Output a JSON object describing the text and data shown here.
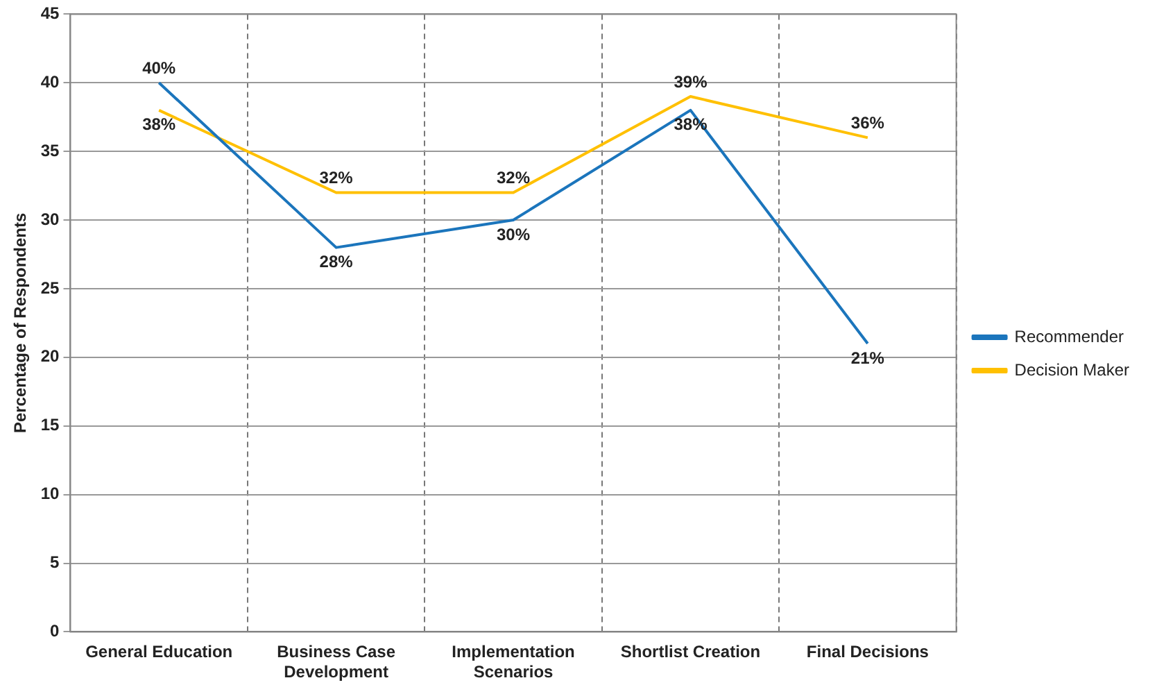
{
  "chart_data": {
    "type": "line",
    "ylabel": "Percentage of Respondents",
    "categories": [
      "General Education",
      "Business Case Development",
      "Implementation Scenarios",
      "Shortlist Creation",
      "Final Decisions"
    ],
    "series": [
      {
        "name": "Recommender",
        "color": "#1b75bc",
        "values": [
          40,
          28,
          30,
          38,
          21
        ],
        "value_labels": [
          "40%",
          "28%",
          "30%",
          "38%",
          "21%"
        ]
      },
      {
        "name": "Decision Maker",
        "color": "#ffc000",
        "values": [
          38,
          32,
          32,
          39,
          36
        ],
        "value_labels": [
          "38%",
          "32%",
          "32%",
          "39%",
          "36%"
        ]
      }
    ],
    "ylim": [
      0,
      45
    ],
    "yticks": [
      0,
      5,
      10,
      15,
      20,
      25,
      30,
      35,
      40,
      45
    ],
    "grid": true,
    "legend": "right",
    "marker": "none",
    "line_style": "solid"
  }
}
